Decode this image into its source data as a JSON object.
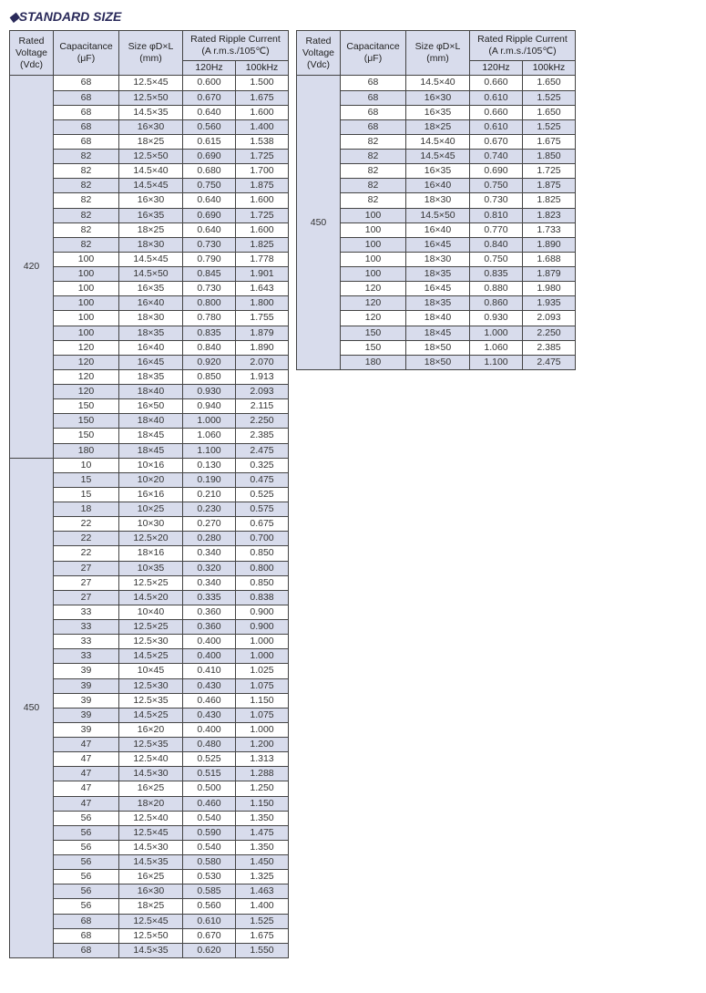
{
  "title": "◆STANDARD SIZE",
  "headers": {
    "voltage": "Rated Voltage (Vdc)",
    "cap": "Capacitance (μF)",
    "size": "Size φD×L (mm)",
    "ripple": "Rated Ripple Current (A r.m.s./105℃)",
    "f1": "120Hz",
    "f2": "100kHz"
  },
  "left": {
    "groups": [
      {
        "voltage": "420",
        "rows": [
          {
            "c": "68",
            "s": "12.5×45",
            "r1": "0.600",
            "r2": "1.500"
          },
          {
            "c": "68",
            "s": "12.5×50",
            "r1": "0.670",
            "r2": "1.675"
          },
          {
            "c": "68",
            "s": "14.5×35",
            "r1": "0.640",
            "r2": "1.600"
          },
          {
            "c": "68",
            "s": "16×30",
            "r1": "0.560",
            "r2": "1.400"
          },
          {
            "c": "68",
            "s": "18×25",
            "r1": "0.615",
            "r2": "1.538"
          },
          {
            "c": "82",
            "s": "12.5×50",
            "r1": "0.690",
            "r2": "1.725"
          },
          {
            "c": "82",
            "s": "14.5×40",
            "r1": "0.680",
            "r2": "1.700"
          },
          {
            "c": "82",
            "s": "14.5×45",
            "r1": "0.750",
            "r2": "1.875"
          },
          {
            "c": "82",
            "s": "16×30",
            "r1": "0.640",
            "r2": "1.600"
          },
          {
            "c": "82",
            "s": "16×35",
            "r1": "0.690",
            "r2": "1.725"
          },
          {
            "c": "82",
            "s": "18×25",
            "r1": "0.640",
            "r2": "1.600"
          },
          {
            "c": "82",
            "s": "18×30",
            "r1": "0.730",
            "r2": "1.825"
          },
          {
            "c": "100",
            "s": "14.5×45",
            "r1": "0.790",
            "r2": "1.778"
          },
          {
            "c": "100",
            "s": "14.5×50",
            "r1": "0.845",
            "r2": "1.901"
          },
          {
            "c": "100",
            "s": "16×35",
            "r1": "0.730",
            "r2": "1.643"
          },
          {
            "c": "100",
            "s": "16×40",
            "r1": "0.800",
            "r2": "1.800"
          },
          {
            "c": "100",
            "s": "18×30",
            "r1": "0.780",
            "r2": "1.755"
          },
          {
            "c": "100",
            "s": "18×35",
            "r1": "0.835",
            "r2": "1.879"
          },
          {
            "c": "120",
            "s": "16×40",
            "r1": "0.840",
            "r2": "1.890"
          },
          {
            "c": "120",
            "s": "16×45",
            "r1": "0.920",
            "r2": "2.070"
          },
          {
            "c": "120",
            "s": "18×35",
            "r1": "0.850",
            "r2": "1.913"
          },
          {
            "c": "120",
            "s": "18×40",
            "r1": "0.930",
            "r2": "2.093"
          },
          {
            "c": "150",
            "s": "16×50",
            "r1": "0.940",
            "r2": "2.115"
          },
          {
            "c": "150",
            "s": "18×40",
            "r1": "1.000",
            "r2": "2.250"
          },
          {
            "c": "150",
            "s": "18×45",
            "r1": "1.060",
            "r2": "2.385"
          },
          {
            "c": "180",
            "s": "18×45",
            "r1": "1.100",
            "r2": "2.475"
          }
        ]
      },
      {
        "voltage": "450",
        "rows": [
          {
            "c": "10",
            "s": "10×16",
            "r1": "0.130",
            "r2": "0.325"
          },
          {
            "c": "15",
            "s": "10×20",
            "r1": "0.190",
            "r2": "0.475"
          },
          {
            "c": "15",
            "s": "16×16",
            "r1": "0.210",
            "r2": "0.525"
          },
          {
            "c": "18",
            "s": "10×25",
            "r1": "0.230",
            "r2": "0.575"
          },
          {
            "c": "22",
            "s": "10×30",
            "r1": "0.270",
            "r2": "0.675"
          },
          {
            "c": "22",
            "s": "12.5×20",
            "r1": "0.280",
            "r2": "0.700"
          },
          {
            "c": "22",
            "s": "18×16",
            "r1": "0.340",
            "r2": "0.850"
          },
          {
            "c": "27",
            "s": "10×35",
            "r1": "0.320",
            "r2": "0.800"
          },
          {
            "c": "27",
            "s": "12.5×25",
            "r1": "0.340",
            "r2": "0.850"
          },
          {
            "c": "27",
            "s": "14.5×20",
            "r1": "0.335",
            "r2": "0.838"
          },
          {
            "c": "33",
            "s": "10×40",
            "r1": "0.360",
            "r2": "0.900"
          },
          {
            "c": "33",
            "s": "12.5×25",
            "r1": "0.360",
            "r2": "0.900"
          },
          {
            "c": "33",
            "s": "12.5×30",
            "r1": "0.400",
            "r2": "1.000"
          },
          {
            "c": "33",
            "s": "14.5×25",
            "r1": "0.400",
            "r2": "1.000"
          },
          {
            "c": "39",
            "s": "10×45",
            "r1": "0.410",
            "r2": "1.025"
          },
          {
            "c": "39",
            "s": "12.5×30",
            "r1": "0.430",
            "r2": "1.075"
          },
          {
            "c": "39",
            "s": "12.5×35",
            "r1": "0.460",
            "r2": "1.150"
          },
          {
            "c": "39",
            "s": "14.5×25",
            "r1": "0.430",
            "r2": "1.075"
          },
          {
            "c": "39",
            "s": "16×20",
            "r1": "0.400",
            "r2": "1.000"
          },
          {
            "c": "47",
            "s": "12.5×35",
            "r1": "0.480",
            "r2": "1.200"
          },
          {
            "c": "47",
            "s": "12.5×40",
            "r1": "0.525",
            "r2": "1.313"
          },
          {
            "c": "47",
            "s": "14.5×30",
            "r1": "0.515",
            "r2": "1.288"
          },
          {
            "c": "47",
            "s": "16×25",
            "r1": "0.500",
            "r2": "1.250"
          },
          {
            "c": "47",
            "s": "18×20",
            "r1": "0.460",
            "r2": "1.150"
          },
          {
            "c": "56",
            "s": "12.5×40",
            "r1": "0.540",
            "r2": "1.350"
          },
          {
            "c": "56",
            "s": "12.5×45",
            "r1": "0.590",
            "r2": "1.475"
          },
          {
            "c": "56",
            "s": "14.5×30",
            "r1": "0.540",
            "r2": "1.350"
          },
          {
            "c": "56",
            "s": "14.5×35",
            "r1": "0.580",
            "r2": "1.450"
          },
          {
            "c": "56",
            "s": "16×25",
            "r1": "0.530",
            "r2": "1.325"
          },
          {
            "c": "56",
            "s": "16×30",
            "r1": "0.585",
            "r2": "1.463"
          },
          {
            "c": "56",
            "s": "18×25",
            "r1": "0.560",
            "r2": "1.400"
          },
          {
            "c": "68",
            "s": "12.5×45",
            "r1": "0.610",
            "r2": "1.525"
          },
          {
            "c": "68",
            "s": "12.5×50",
            "r1": "0.670",
            "r2": "1.675"
          },
          {
            "c": "68",
            "s": "14.5×35",
            "r1": "0.620",
            "r2": "1.550"
          }
        ]
      }
    ]
  },
  "right": {
    "groups": [
      {
        "voltage": "450",
        "rows": [
          {
            "c": "68",
            "s": "14.5×40",
            "r1": "0.660",
            "r2": "1.650"
          },
          {
            "c": "68",
            "s": "16×30",
            "r1": "0.610",
            "r2": "1.525"
          },
          {
            "c": "68",
            "s": "16×35",
            "r1": "0.660",
            "r2": "1.650"
          },
          {
            "c": "68",
            "s": "18×25",
            "r1": "0.610",
            "r2": "1.525"
          },
          {
            "c": "82",
            "s": "14.5×40",
            "r1": "0.670",
            "r2": "1.675"
          },
          {
            "c": "82",
            "s": "14.5×45",
            "r1": "0.740",
            "r2": "1.850"
          },
          {
            "c": "82",
            "s": "16×35",
            "r1": "0.690",
            "r2": "1.725"
          },
          {
            "c": "82",
            "s": "16×40",
            "r1": "0.750",
            "r2": "1.875"
          },
          {
            "c": "82",
            "s": "18×30",
            "r1": "0.730",
            "r2": "1.825"
          },
          {
            "c": "100",
            "s": "14.5×50",
            "r1": "0.810",
            "r2": "1.823"
          },
          {
            "c": "100",
            "s": "16×40",
            "r1": "0.770",
            "r2": "1.733"
          },
          {
            "c": "100",
            "s": "16×45",
            "r1": "0.840",
            "r2": "1.890"
          },
          {
            "c": "100",
            "s": "18×30",
            "r1": "0.750",
            "r2": "1.688"
          },
          {
            "c": "100",
            "s": "18×35",
            "r1": "0.835",
            "r2": "1.879"
          },
          {
            "c": "120",
            "s": "16×45",
            "r1": "0.880",
            "r2": "1.980"
          },
          {
            "c": "120",
            "s": "18×35",
            "r1": "0.860",
            "r2": "1.935"
          },
          {
            "c": "120",
            "s": "18×40",
            "r1": "0.930",
            "r2": "2.093"
          },
          {
            "c": "150",
            "s": "18×45",
            "r1": "1.000",
            "r2": "2.250"
          },
          {
            "c": "150",
            "s": "18×50",
            "r1": "1.060",
            "r2": "2.385"
          },
          {
            "c": "180",
            "s": "18×50",
            "r1": "1.100",
            "r2": "2.475"
          }
        ]
      }
    ]
  },
  "colors": {
    "header_bg": "#d8dcec",
    "stripe_bg": "#d8dcec",
    "border": "#444444",
    "text": "#333333",
    "title": "#2a2a5a"
  },
  "font_sizes": {
    "title": 14,
    "body": 10.5
  }
}
